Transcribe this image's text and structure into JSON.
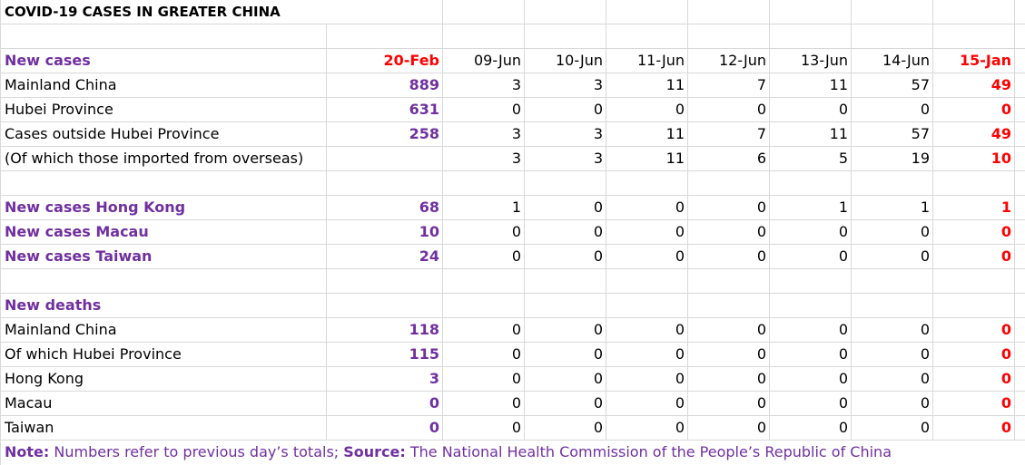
{
  "title": "COVID-19 CASES IN GREATER CHINA",
  "header": {
    "label": "New cases",
    "dates": [
      "20-Feb",
      "09-Jun",
      "10-Jun",
      "11-Jun",
      "12-Jun",
      "13-Jun",
      "14-Jun",
      "15-Jan"
    ]
  },
  "new_cases": [
    {
      "label": "Mainland China",
      "values": [
        "889",
        "3",
        "3",
        "11",
        "7",
        "11",
        "57",
        "49"
      ]
    },
    {
      "label": "Hubei Province",
      "values": [
        "631",
        "0",
        "0",
        "0",
        "0",
        "0",
        "0",
        "0"
      ]
    },
    {
      "label": "Cases outside Hubei Province",
      "values": [
        "258",
        "3",
        "3",
        "11",
        "7",
        "11",
        "57",
        "49"
      ]
    },
    {
      "label": "(Of which those imported from overseas)",
      "values": [
        "",
        "3",
        "3",
        "11",
        "6",
        "5",
        "19",
        "10"
      ]
    }
  ],
  "regional": [
    {
      "label": "New cases Hong Kong",
      "values": [
        "68",
        "1",
        "0",
        "0",
        "0",
        "1",
        "1",
        "1"
      ]
    },
    {
      "label": "New cases Macau",
      "values": [
        "10",
        "0",
        "0",
        "0",
        "0",
        "0",
        "0",
        "0"
      ]
    },
    {
      "label": "New cases Taiwan",
      "values": [
        "24",
        "0",
        "0",
        "0",
        "0",
        "0",
        "0",
        "0"
      ]
    }
  ],
  "deaths_header": "New deaths",
  "deaths": [
    {
      "label": "Mainland China",
      "values": [
        "118",
        "0",
        "0",
        "0",
        "0",
        "0",
        "0",
        "0"
      ]
    },
    {
      "label": "Of which Hubei Province",
      "values": [
        "115",
        "0",
        "0",
        "0",
        "0",
        "0",
        "0",
        "0"
      ]
    },
    {
      "label": "Hong Kong",
      "values": [
        "3",
        "0",
        "0",
        "0",
        "0",
        "0",
        "0",
        "0"
      ]
    },
    {
      "label": "Macau",
      "values": [
        "0",
        "0",
        "0",
        "0",
        "0",
        "0",
        "0",
        "0"
      ]
    },
    {
      "label": "Taiwan",
      "values": [
        "0",
        "0",
        "0",
        "0",
        "0",
        "0",
        "0",
        "0"
      ]
    }
  ],
  "footer": {
    "note_label": "Note:",
    "note_text": " Numbers refer to previous day’s totals; ",
    "source_label": "Source:",
    "source_text": " The National Health Commission of the People’s Republic of China"
  },
  "colors": {
    "accent_purple": "#7030a0",
    "highlight_red": "#ff0000",
    "gridline": "#d9d9d9"
  }
}
